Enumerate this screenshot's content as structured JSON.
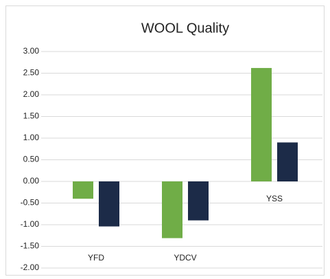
{
  "chart_data": {
    "type": "bar",
    "title": "WOOL Quality",
    "categories": [
      "YFD",
      "YDCV",
      "YSS"
    ],
    "series": [
      {
        "color": "#70ad47",
        "values": [
          -0.4,
          -1.31,
          2.62
        ]
      },
      {
        "color": "#1c2b48",
        "values": [
          -1.04,
          -0.9,
          0.9
        ]
      }
    ],
    "ylim": [
      -2,
      3
    ],
    "yticks": [
      {
        "value": -2,
        "label": "-2.00"
      },
      {
        "value": -1.5,
        "label": "-1.50"
      },
      {
        "value": -1,
        "label": "-1.00"
      },
      {
        "value": -0.5,
        "label": "-0.50"
      },
      {
        "value": 0,
        "label": "0.00"
      },
      {
        "value": 0.5,
        "label": "0.50"
      },
      {
        "value": 1,
        "label": "1.00"
      },
      {
        "value": 1.5,
        "label": "1.50"
      },
      {
        "value": 2,
        "label": "2.00"
      },
      {
        "value": 2.5,
        "label": "2.50"
      },
      {
        "value": 3,
        "label": "3.00"
      }
    ],
    "grid": true
  }
}
